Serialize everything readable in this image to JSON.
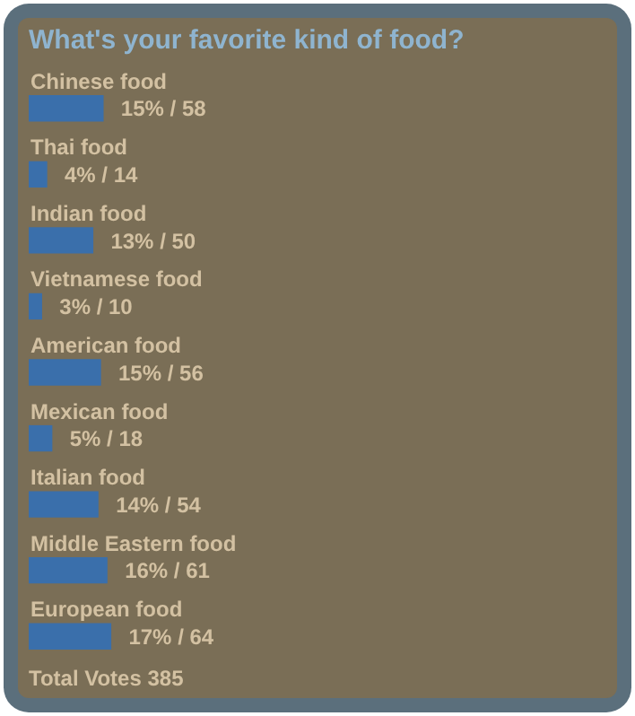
{
  "chart_data": {
    "type": "bar",
    "orientation": "horizontal",
    "title": "What's your favorite kind of food?",
    "categories": [
      "Chinese food",
      "Thai food",
      "Indian food",
      "Vietnamese food",
      "American food",
      "Mexican food",
      "Italian food",
      "Middle Eastern food",
      "European food"
    ],
    "values": [
      58,
      14,
      50,
      10,
      56,
      18,
      54,
      61,
      64
    ],
    "value_labels": [
      "15% / 58",
      "4% / 14",
      "13% / 50",
      "3% / 10",
      "15% / 56",
      "5% / 18",
      "14% / 54",
      "16% / 61",
      "17% / 64"
    ],
    "color": "#3a6fab",
    "annotations": [
      "Total Votes 385"
    ]
  }
}
